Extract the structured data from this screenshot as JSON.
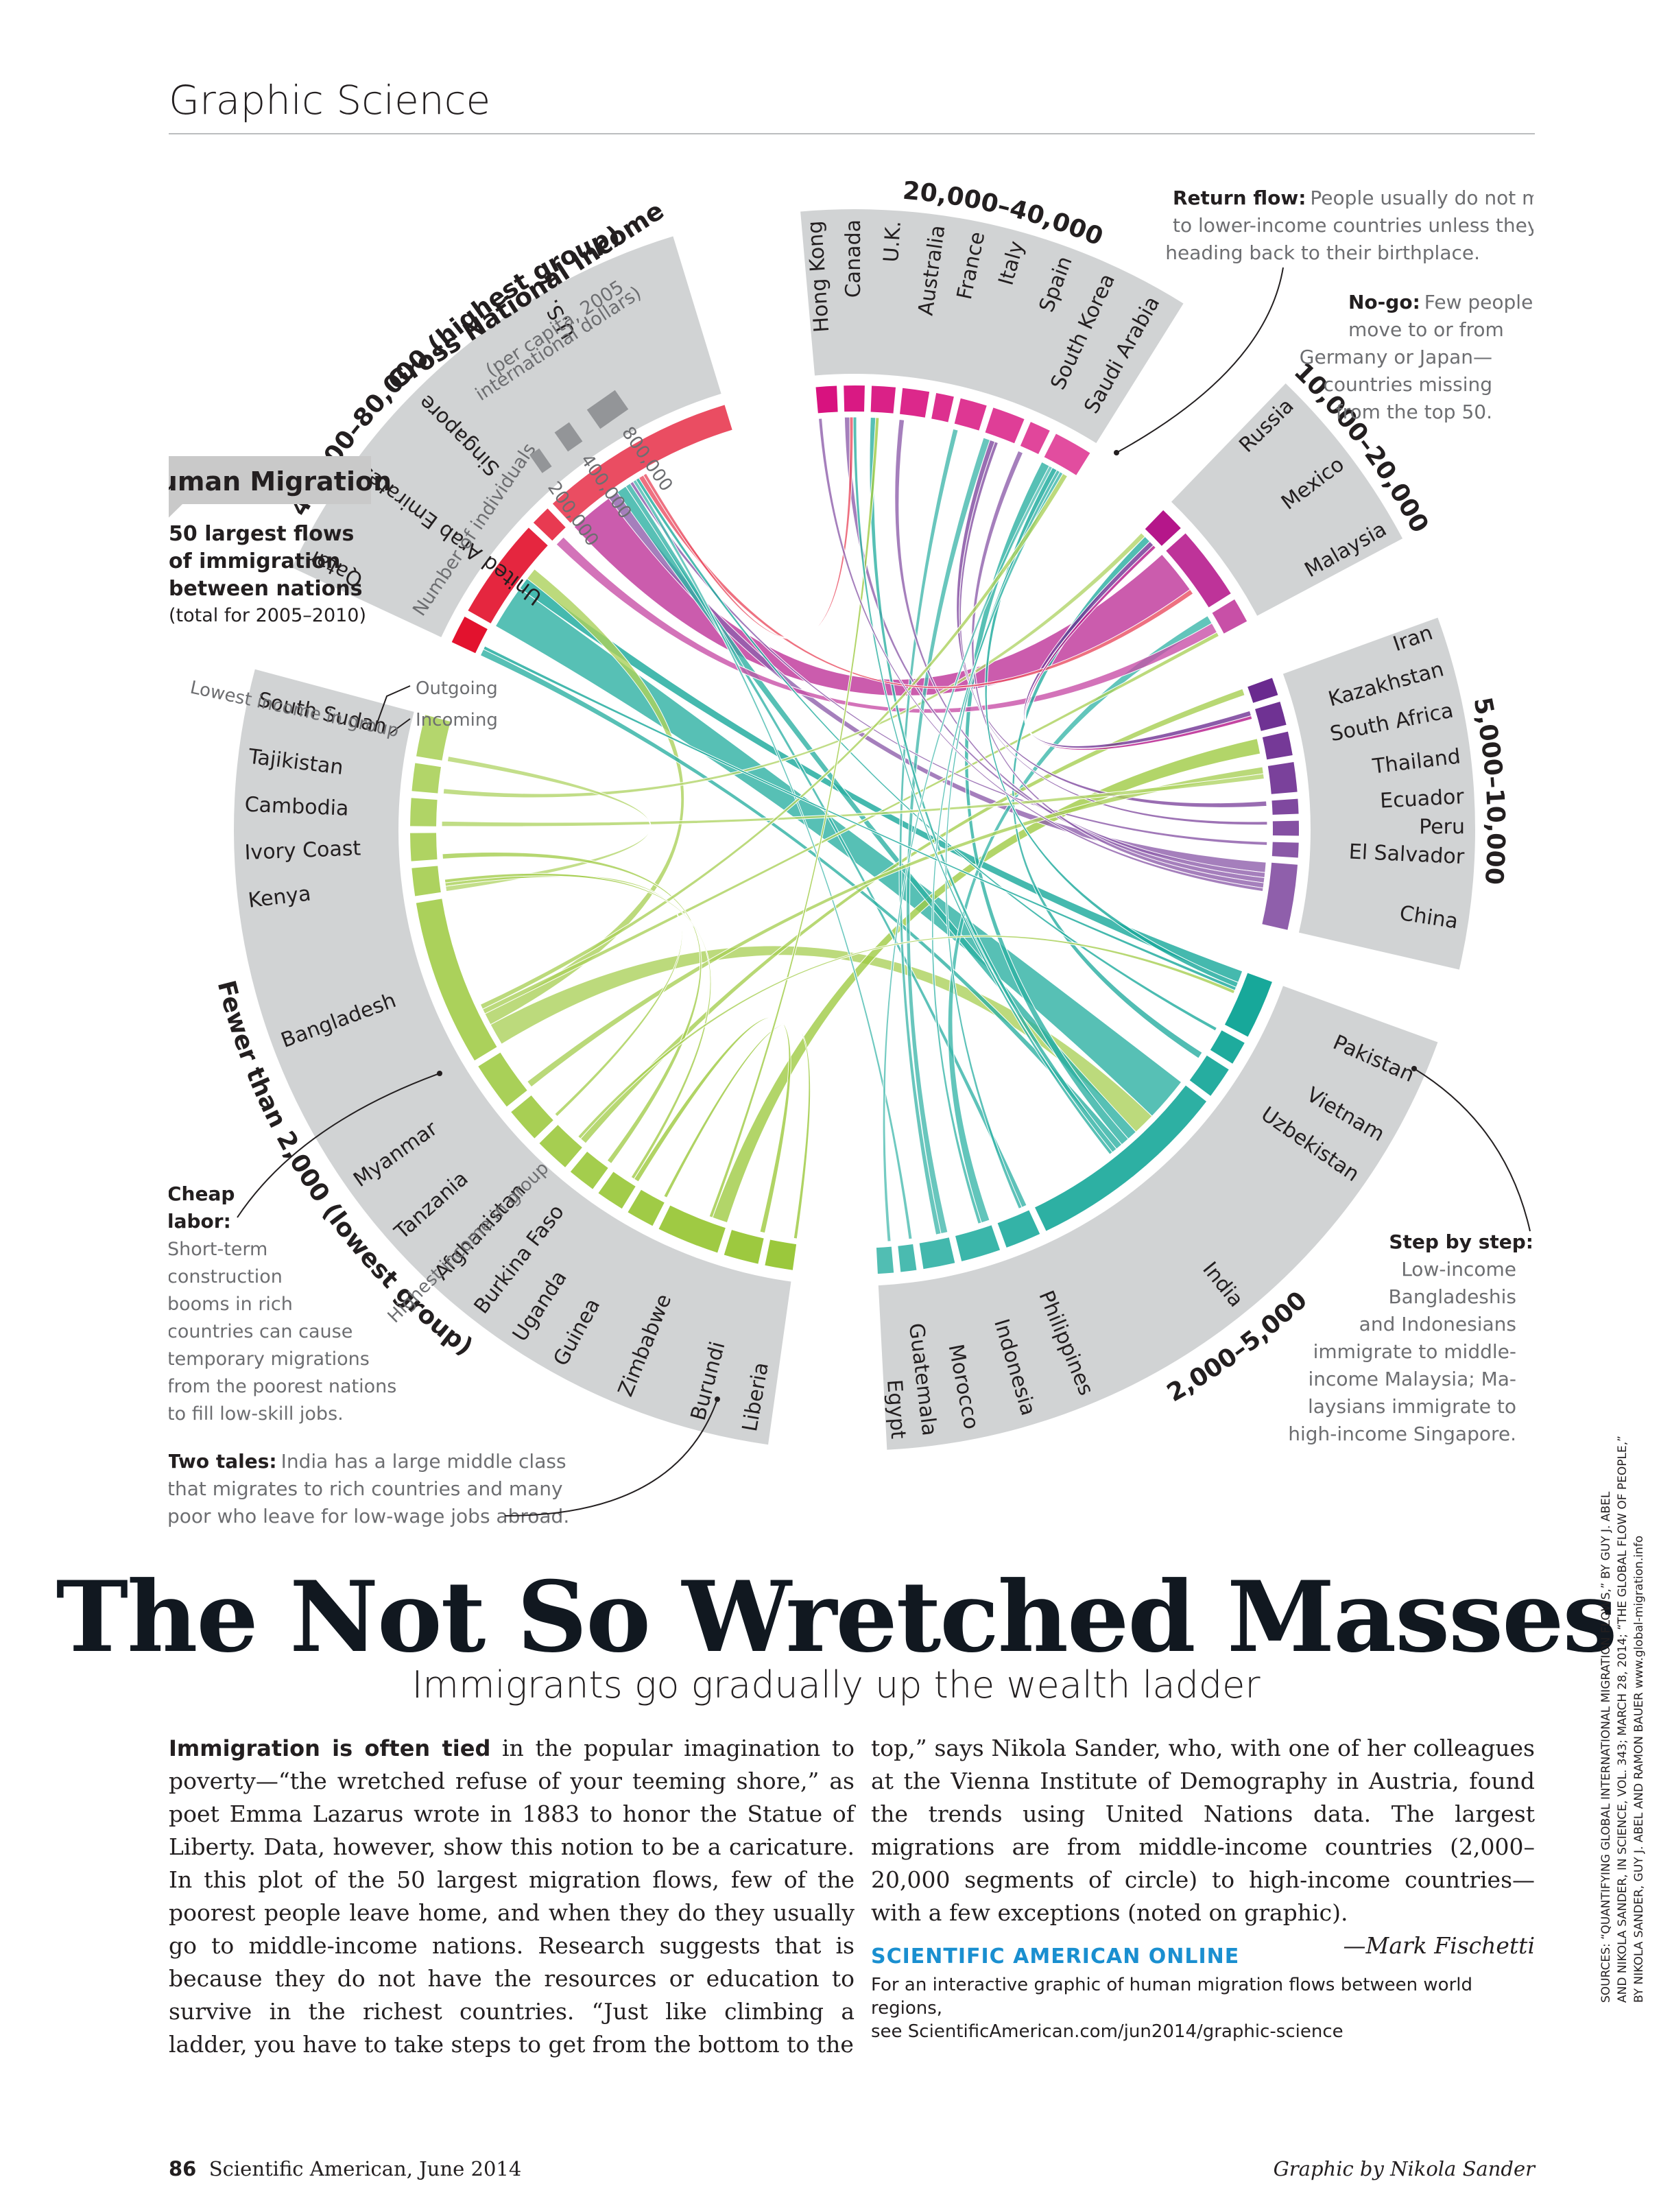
{
  "section_label": "Graphic Science",
  "title": "The Not So Wretched Masses",
  "subtitle": "Immigrants go gradually up the wealth ladder",
  "chart_data": {
    "type": "chord",
    "heading": "Human Migration",
    "subheading_lines": [
      "50 largest flows",
      "of immigration",
      "between nations"
    ],
    "subheading_period": "(total for 2005–2010)",
    "gni_label": "Gross National Income",
    "gni_sublabel_1": "(per capita, 2005",
    "gni_sublabel_2": "international dollars)",
    "scale_label": "Number of individuals",
    "scale_values": [
      "200,000",
      "400,000",
      "800,000"
    ],
    "scale_numbers": [
      200000,
      400000,
      800000
    ],
    "outgoing_label": "Outgoing",
    "incoming_label": "Incoming",
    "lowest_in_group": "Lowest income in group",
    "highest_in_group": "Highest income in group",
    "groups": [
      {
        "label": "40,000–80,000 (highest group)",
        "color": "#e3122e",
        "countries": [
          {
            "name": "Qatar",
            "w": 1.0
          },
          {
            "name": "United Arab Emirates",
            "w": 3.6
          },
          {
            "name": "Singapore",
            "w": 0.7
          },
          {
            "name": "U.S.",
            "w": 7.0
          }
        ]
      },
      {
        "label": "20,000–40,000",
        "color": "#d8127f",
        "countries": [
          {
            "name": "Hong Kong",
            "w": 0.7
          },
          {
            "name": "Canada",
            "w": 0.7
          },
          {
            "name": "U.K.",
            "w": 0.8
          },
          {
            "name": "Australia",
            "w": 0.9
          },
          {
            "name": "France",
            "w": 0.6
          },
          {
            "name": "Italy",
            "w": 0.9
          },
          {
            "name": "Spain",
            "w": 1.1
          },
          {
            "name": "South Korea",
            "w": 0.7
          },
          {
            "name": "Saudi Arabia",
            "w": 1.3
          }
        ]
      },
      {
        "label": "10,000–20,000",
        "color": "#b5168a",
        "countries": [
          {
            "name": "Russia",
            "w": 1.0
          },
          {
            "name": "Mexico",
            "w": 3.0
          },
          {
            "name": "Malaysia",
            "w": 1.0
          }
        ]
      },
      {
        "label": "5,000–10,000",
        "color": "#6a2a8f",
        "countries": [
          {
            "name": "Iran",
            "w": 0.6
          },
          {
            "name": "Kazakhstan",
            "w": 0.8
          },
          {
            "name": "South Africa",
            "w": 0.8
          },
          {
            "name": "Thailand",
            "w": 1.0
          },
          {
            "name": "Ecuador",
            "w": 0.5
          },
          {
            "name": "Peru",
            "w": 0.5
          },
          {
            "name": "El Salvador",
            "w": 0.5
          },
          {
            "name": "China",
            "w": 2.2
          }
        ]
      },
      {
        "label": "2,000–5,000",
        "color": "#17a89a",
        "countries": [
          {
            "name": "Pakistan",
            "w": 1.5
          },
          {
            "name": "Vietnam",
            "w": 0.6
          },
          {
            "name": "Uzbekistan",
            "w": 0.8
          },
          {
            "name": "India",
            "w": 5.2
          },
          {
            "name": "Philippines",
            "w": 0.9
          },
          {
            "name": "Indonesia",
            "w": 1.0
          },
          {
            "name": "Morocco",
            "w": 0.8
          },
          {
            "name": "Guatemala",
            "w": 0.4
          },
          {
            "name": "Egypt",
            "w": 0.4
          }
        ]
      },
      {
        "label": "Fewer than 2,000 (lowest group)",
        "color": "#9bc83c",
        "countries": [
          {
            "name": "Liberia",
            "w": 0.4
          },
          {
            "name": "Burundi",
            "w": 0.5
          },
          {
            "name": "Zimbabwe",
            "w": 0.9
          },
          {
            "name": "Guinea",
            "w": 0.4
          },
          {
            "name": "Uganda",
            "w": 0.4
          },
          {
            "name": "Burkina Faso",
            "w": 0.4
          },
          {
            "name": "Afghanistan",
            "w": 0.5
          },
          {
            "name": "Tanzania",
            "w": 0.5
          },
          {
            "name": "Myanmar",
            "w": 0.7
          },
          {
            "name": "Bangladesh",
            "w": 2.4
          },
          {
            "name": "Kenya",
            "w": 0.4
          },
          {
            "name": "Ivory Coast",
            "w": 0.4
          },
          {
            "name": "Cambodia",
            "w": 0.4
          },
          {
            "name": "Tajikistan",
            "w": 0.4
          },
          {
            "name": "South Sudan",
            "w": 0.6
          }
        ]
      }
    ],
    "flows": [
      [
        "India",
        "United Arab Emirates",
        2.6
      ],
      [
        "Mexico",
        "U.S.",
        2.6
      ],
      [
        "Bangladesh",
        "India",
        1.3
      ],
      [
        "Zimbabwe",
        "South Africa",
        0.9
      ],
      [
        "China",
        "U.S.",
        0.6
      ],
      [
        "Pakistan",
        "United Arab Emirates",
        0.7
      ],
      [
        "India",
        "U.S.",
        0.6
      ],
      [
        "Philippines",
        "U.S.",
        0.3
      ],
      [
        "Bangladesh",
        "United Arab Emirates",
        0.7
      ],
      [
        "India",
        "Saudi Arabia",
        0.5
      ],
      [
        "Indonesia",
        "Malaysia",
        0.5
      ],
      [
        "Malaysia",
        "Singapore",
        0.6
      ],
      [
        "India",
        "Qatar",
        0.4
      ],
      [
        "Afghanistan",
        "Iran",
        0.4
      ],
      [
        "Bangladesh",
        "Malaysia",
        0.3
      ],
      [
        "Burundi",
        "Uganda",
        0.3
      ],
      [
        "Liberia",
        "Guinea",
        0.2
      ],
      [
        "Tajikistan",
        "Russia",
        0.3
      ],
      [
        "Uzbekistan",
        "Russia",
        0.4
      ],
      [
        "Kazakhstan",
        "Russia",
        0.3
      ],
      [
        "Morocco",
        "Spain",
        0.4
      ],
      [
        "Morocco",
        "Italy",
        0.3
      ],
      [
        "Ecuador",
        "Spain",
        0.3
      ],
      [
        "Peru",
        "Spain",
        0.2
      ],
      [
        "El Salvador",
        "U.S.",
        0.2
      ],
      [
        "Guatemala",
        "U.S.",
        0.2
      ],
      [
        "Vietnam",
        "U.S.",
        0.2
      ],
      [
        "China",
        "Canada",
        0.3
      ],
      [
        "China",
        "Australia",
        0.3
      ],
      [
        "China",
        "South Korea",
        0.3
      ],
      [
        "India",
        "U.K.",
        0.3
      ],
      [
        "Egypt",
        "Saudi Arabia",
        0.2
      ],
      [
        "Myanmar",
        "Thailand",
        0.4
      ],
      [
        "Cambodia",
        "Thailand",
        0.3
      ],
      [
        "South Sudan",
        "Kenya",
        0.3
      ],
      [
        "Burkina Faso",
        "Ivory Coast",
        0.3
      ],
      [
        "Tanzania",
        "Kenya",
        0.2
      ],
      [
        "Pakistan",
        "Saudi Arabia",
        0.3
      ],
      [
        "Philippines",
        "Saudi Arabia",
        0.2
      ],
      [
        "Indonesia",
        "Saudi Arabia",
        0.2
      ],
      [
        "Bangladesh",
        "Saudi Arabia",
        0.3
      ],
      [
        "Uganda",
        "Kenya",
        0.2
      ],
      [
        "U.S.",
        "Mexico",
        0.3
      ],
      [
        "U.S.",
        "Canada",
        0.2
      ],
      [
        "Pakistan",
        "Qatar",
        0.2
      ],
      [
        "Zimbabwe",
        "U.K.",
        0.2
      ],
      [
        "Afghanistan",
        "Pakistan",
        0.2
      ],
      [
        "Russia",
        "Kazakhstan",
        0.2
      ],
      [
        "India",
        "Canada",
        0.2
      ],
      [
        "China",
        "Hong Kong",
        0.2
      ]
    ]
  },
  "annotations": {
    "return_flow": {
      "head": "Return flow:",
      "text": [
        "People usually do not move",
        "to lower-income countries unless they are",
        "heading back to their birthplace."
      ]
    },
    "no_go": {
      "head": "No-go:",
      "text": [
        "Few people",
        "move to or from",
        "Germany or Japan—",
        "countries missing",
        "from the top 50."
      ]
    },
    "cheap_labor": {
      "head_1": "Cheap",
      "head_2": "labor:",
      "text": [
        "Short-term",
        "construction",
        "booms in rich",
        "countries can cause",
        "temporary migrations",
        "from the poorest nations",
        "to fill low-skill jobs."
      ]
    },
    "two_tales": {
      "head": "Two tales:",
      "text": [
        "India has a large middle class",
        "that migrates to rich countries and many",
        "poor who leave for low-wage jobs abroad."
      ]
    },
    "step_by_step": {
      "head": "Step by step:",
      "text": [
        "Low-income",
        "Bangladeshis",
        "and Indonesians",
        "immigrate to middle-",
        "income Malaysia; Ma-",
        "laysians immigrate to",
        "high-income Singapore."
      ]
    }
  },
  "body": {
    "lead": "Immigration is often tied",
    "col1": " in the popular imagination to poverty—“the wretched refuse of your teeming shore,” as poet Emma Lazarus wrote in 1883 to honor the Statue of Liberty. Data, however, show this notion to be a caricature. In this plot of the 50 largest migration flows, few of the poorest people leave home, and when they do they usually go to middle-income nations. Research suggests that is because they do not have the resources or education to survive in the richest countries. “Just like climbing a ladder, you have to take steps to get from the bottom to the",
    "col2": "top,” says Nikola Sander, who, with one of her colleagues at the Vienna Institute of Demography in Austria, found the trends using United Nations data. The largest migrations are from middle-income countries (2,000–20,000 segments of circle) to high-income countries—with a few exceptions (noted on graphic).",
    "signature": "—Mark Fischetti"
  },
  "online": {
    "heading": "SCIENTIFIC AMERICAN ONLINE",
    "line1": "For an interactive graphic of human migration flows between world regions,",
    "line2": "see ScientificAmerican.com/jun2014/graphic-science"
  },
  "sources": {
    "line1": "SOURCES: “QUANTIFYING GLOBAL INTERNATIONAL MIGRATION FLOWS,” BY GUY J. ABEL",
    "line2": "AND NIKOLA SANDER, IN SCIENCE, VOL. 343; MARCH 28, 2014; “THE GLOBAL FLOW OF PEOPLE,”",
    "line3": "BY NIKOLA SANDER, GUY J. ABEL AND RAMON BAUER www.global-migration.info"
  },
  "footer": {
    "page": "86",
    "publication": "Scientific American, June 2014",
    "credit": "Graphic by Nikola Sander"
  }
}
